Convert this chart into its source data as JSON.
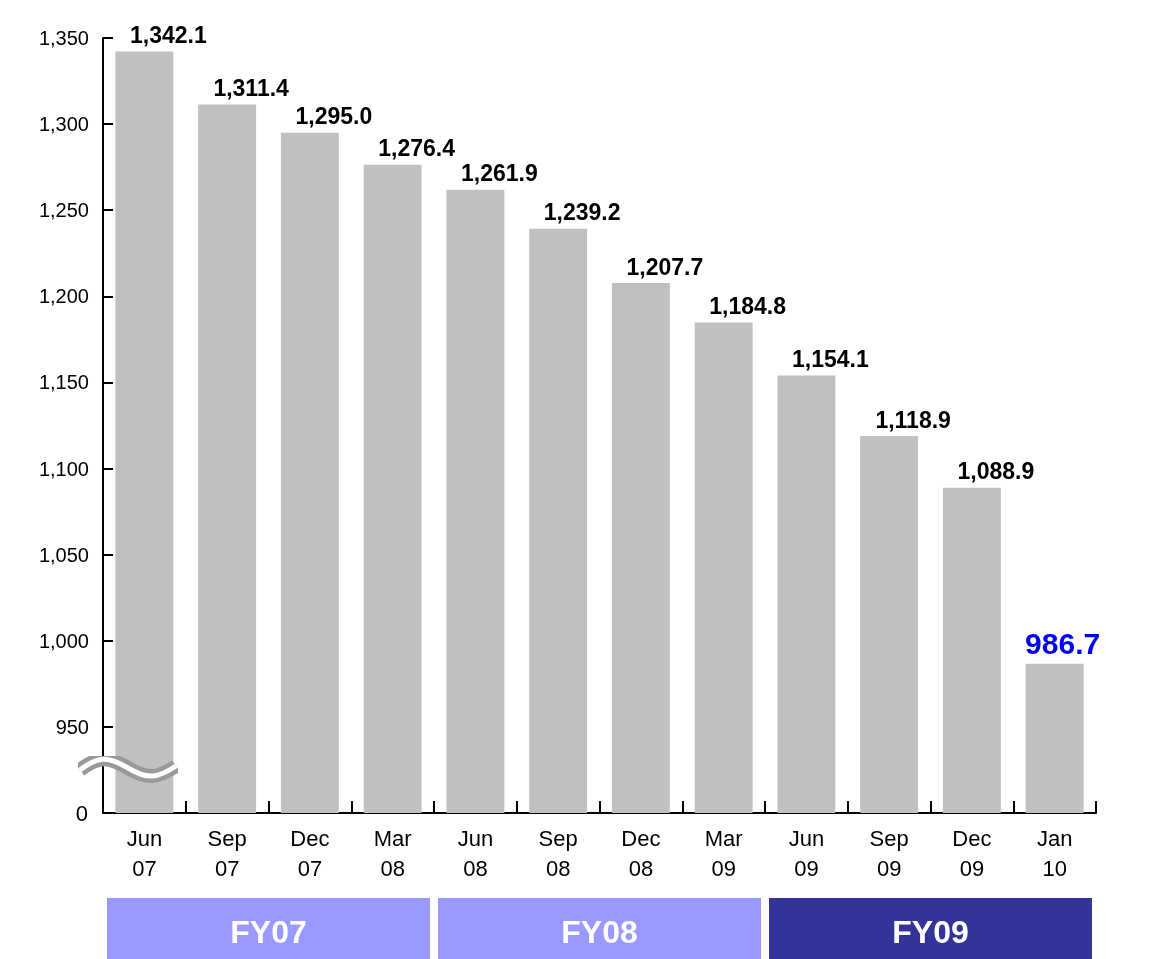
{
  "chart_data": {
    "type": "bar",
    "categories": [
      "Jun 07",
      "Sep 07",
      "Dec 07",
      "Mar 08",
      "Jun 08",
      "Sep 08",
      "Dec 08",
      "Mar 09",
      "Jun 09",
      "Sep 09",
      "Dec 09",
      "Jan 10"
    ],
    "values": [
      1342.1,
      1311.4,
      1295.0,
      1276.4,
      1261.9,
      1239.2,
      1207.7,
      1184.8,
      1154.1,
      1118.9,
      1088.9,
      986.7
    ],
    "value_labels": [
      "1,342.1",
      "1,311.4",
      "1,295.0",
      "1,276.4",
      "1,261.9",
      "1,239.2",
      "1,207.7",
      "1,184.8",
      "1,154.1",
      "1,118.9",
      "1,088.9",
      "986.7"
    ],
    "color": "#c0c0c0",
    "grid": false,
    "ylim": [
      900,
      1350
    ],
    "yticks": [
      950,
      {
        "value": 1000,
        "label": "1,000"
      },
      {
        "value": 1050,
        "label": "1,050"
      },
      {
        "value": 1100,
        "label": "1,100"
      },
      {
        "value": 1150,
        "label": "1,150"
      },
      {
        "value": 1200,
        "label": "1,200"
      },
      {
        "value": 1250,
        "label": "1,250"
      },
      {
        "value": 1300,
        "label": "1,300"
      },
      {
        "value": 1350,
        "label": "1,350"
      }
    ],
    "annotations": [
      "0",
      "FY07",
      "FY08",
      "FY09"
    ]
  }
}
